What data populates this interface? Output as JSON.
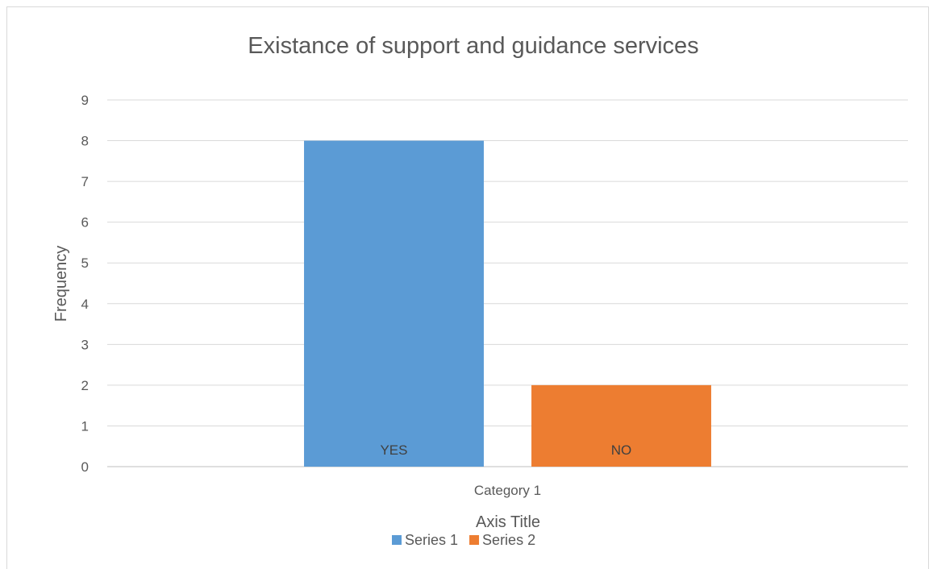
{
  "chart_data": {
    "type": "bar",
    "title": "Existance of support and guidance services",
    "xlabel": "Axis Title",
    "ylabel": "Frequency",
    "categories": [
      "Category 1"
    ],
    "ylim": [
      0,
      9
    ],
    "yticks": [
      "0",
      "1",
      "2",
      "3",
      "4",
      "5",
      "6",
      "7",
      "8",
      "9"
    ],
    "grid": true,
    "legend_position": "bottom",
    "series": [
      {
        "name": "Series 1",
        "values": [
          8
        ],
        "data_label": "YES",
        "color": "#5B9BD5"
      },
      {
        "name": "Series 2",
        "values": [
          2
        ],
        "data_label": "NO",
        "color": "#ED7D31"
      }
    ]
  }
}
